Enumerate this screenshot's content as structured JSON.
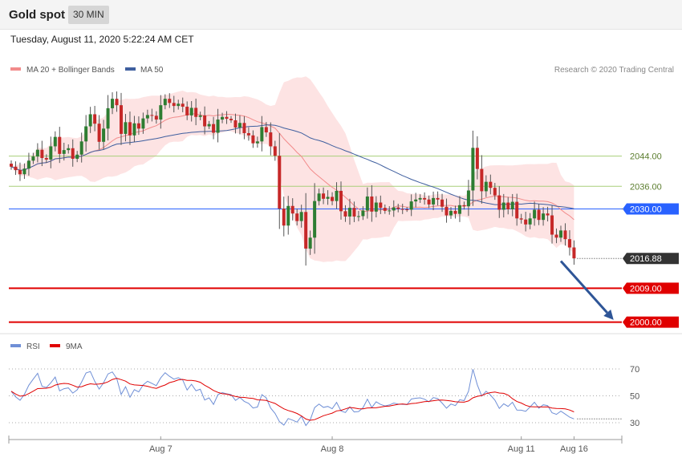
{
  "header": {
    "title": "Gold spot",
    "timeframe": "30 MIN",
    "timestamp": "Tuesday, August 11, 2020 5:22:24 AM CET"
  },
  "colors": {
    "ma20": "#f28b8b",
    "band_fill": "#fde3e3",
    "ma50": "#3f5f9f",
    "candle_up": "#2e7d32",
    "candle_down": "#c62828",
    "resistance_line": "#a8cf7a",
    "pivot_line": "#2962ff",
    "support_line": "#e00000",
    "current_price_bg": "#333333",
    "arrow": "#2e5597",
    "rsi": "#6f8fd6",
    "rsi_ma": "#e00000"
  },
  "chart_data": [
    {
      "type": "candlestick",
      "title": "",
      "legend": [
        {
          "name": "MA 20 + Bollinger Bands",
          "color": "#f28b8b"
        },
        {
          "name": "MA 50",
          "color": "#3f5f9f"
        }
      ],
      "credit": "Research © 2020 Trading Central",
      "x_tick_labels": [
        {
          "label": "Aug 7",
          "bar": 34
        },
        {
          "label": "Aug 8",
          "bar": 73
        },
        {
          "label": "Aug 11",
          "bar": 116
        },
        {
          "label": "Aug 16",
          "bar": 128
        }
      ],
      "y_range": [
        1997.8,
        2063.7
      ],
      "levels": [
        {
          "value": 2044,
          "label": "2044.00",
          "kind": "resistance"
        },
        {
          "value": 2036,
          "label": "2036.00",
          "kind": "resistance"
        },
        {
          "value": 2030,
          "label": "2030.00",
          "kind": "pivot"
        },
        {
          "value": 2016.88,
          "label": "2016.88",
          "kind": "current"
        },
        {
          "value": 2009,
          "label": "2009.00",
          "kind": "support"
        },
        {
          "value": 2000,
          "label": "2000.00",
          "kind": "support"
        }
      ],
      "forecast_arrow": {
        "from_bar": 125,
        "from_value": 2016.2,
        "to_bar": 137,
        "to_value": 2000.6
      },
      "close": [
        2041.2,
        2040.3,
        2039.2,
        2040.7,
        2042.8,
        2043.9,
        2045.7,
        2043.5,
        2043.1,
        2046.6,
        2049.1,
        2044.6,
        2045.6,
        2046.1,
        2043.3,
        2044.4,
        2047.9,
        2051.9,
        2055.1,
        2052.6,
        2047.8,
        2051.3,
        2056.7,
        2059.2,
        2057.5,
        2049.9,
        2053.0,
        2049.5,
        2052.7,
        2051.3,
        2054.0,
        2054.9,
        2054.7,
        2053.7,
        2057.5,
        2059.2,
        2058.1,
        2057.3,
        2057.9,
        2057.1,
        2054.8,
        2056.8,
        2054.4,
        2054.8,
        2051.9,
        2052.5,
        2050.2,
        2053.7,
        2054.4,
        2053.9,
        2053.5,
        2051.6,
        2052.8,
        2050.1,
        2049.5,
        2047.4,
        2047.9,
        2051.7,
        2050.3,
        2046.6,
        2044.1,
        2030.1,
        2025.6,
        2030.8,
        2028.8,
        2026.8,
        2029.2,
        2019.5,
        2022.4,
        2032.1,
        2034.1,
        2032.7,
        2033.2,
        2032.1,
        2034.8,
        2029.4,
        2028.0,
        2030.3,
        2028.0,
        2028.1,
        2029.6,
        2033.3,
        2029.3,
        2031.7,
        2030.3,
        2029.5,
        2029.6,
        2030.4,
        2030.0,
        2029.9,
        2029.8,
        2032.0,
        2032.5,
        2032.9,
        2032.5,
        2031.2,
        2032.9,
        2032.5,
        2030.6,
        2028.3,
        2029.5,
        2028.7,
        2031.0,
        2030.7,
        2034.9,
        2046.2,
        2040.6,
        2034.7,
        2037.2,
        2035.6,
        2033.6,
        2029.8,
        2031.7,
        2029.9,
        2031.9,
        2027.5,
        2027.2,
        2025.9,
        2027.5,
        2029.8,
        2027.1,
        2028.8,
        2028.3,
        2023.2,
        2022.4,
        2024.3,
        2022.0,
        2019.8,
        2016.9
      ],
      "rsi": {
        "name": "RSI",
        "ma_name": "9MA",
        "y_ticks": [
          30,
          50,
          70
        ],
        "values": [
          53.4,
          49.2,
          46.7,
          51.1,
          57.9,
          62.4,
          66.8,
          57.1,
          56.2,
          59.7,
          64.0,
          53.7,
          55.3,
          55.9,
          52.0,
          54.5,
          60.2,
          67.0,
          68.1,
          60.8,
          55.0,
          59.8,
          66.3,
          67.8,
          62.9,
          51.0,
          56.8,
          48.9,
          54.6,
          52.9,
          58.2,
          60.8,
          59.2,
          57.6,
          63.4,
          67.2,
          64.5,
          62.4,
          63.5,
          61.8,
          54.3,
          58.6,
          53.8,
          54.9,
          46.9,
          48.5,
          43.6,
          50.9,
          52.4,
          51.5,
          50.9,
          46.6,
          48.8,
          45.9,
          44.4,
          40.9,
          41.7,
          50.9,
          48.5,
          40.9,
          36.9,
          30.8,
          28.2,
          33.1,
          31.9,
          30.4,
          34.8,
          27.9,
          32.0,
          41.2,
          43.9,
          41.4,
          42.1,
          40.4,
          45.1,
          38.8,
          37.6,
          41.8,
          38.0,
          38.3,
          41.1,
          47.5,
          41.3,
          45.6,
          43.6,
          42.5,
          43.2,
          44.6,
          43.9,
          43.7,
          43.5,
          47.6,
          48.2,
          48.5,
          47.5,
          45.5,
          48.7,
          47.9,
          44.6,
          40.8,
          43.9,
          42.7,
          47.1,
          46.4,
          53.4,
          69.8,
          58.2,
          49.8,
          53.4,
          50.6,
          46.8,
          40.6,
          44.1,
          42.1,
          45.2,
          39.4,
          39.3,
          38.5,
          41.7,
          45.2,
          40.8,
          43.3,
          42.7,
          37.4,
          36.2,
          38.6,
          36.4,
          34.1,
          32.8
        ]
      }
    }
  ]
}
